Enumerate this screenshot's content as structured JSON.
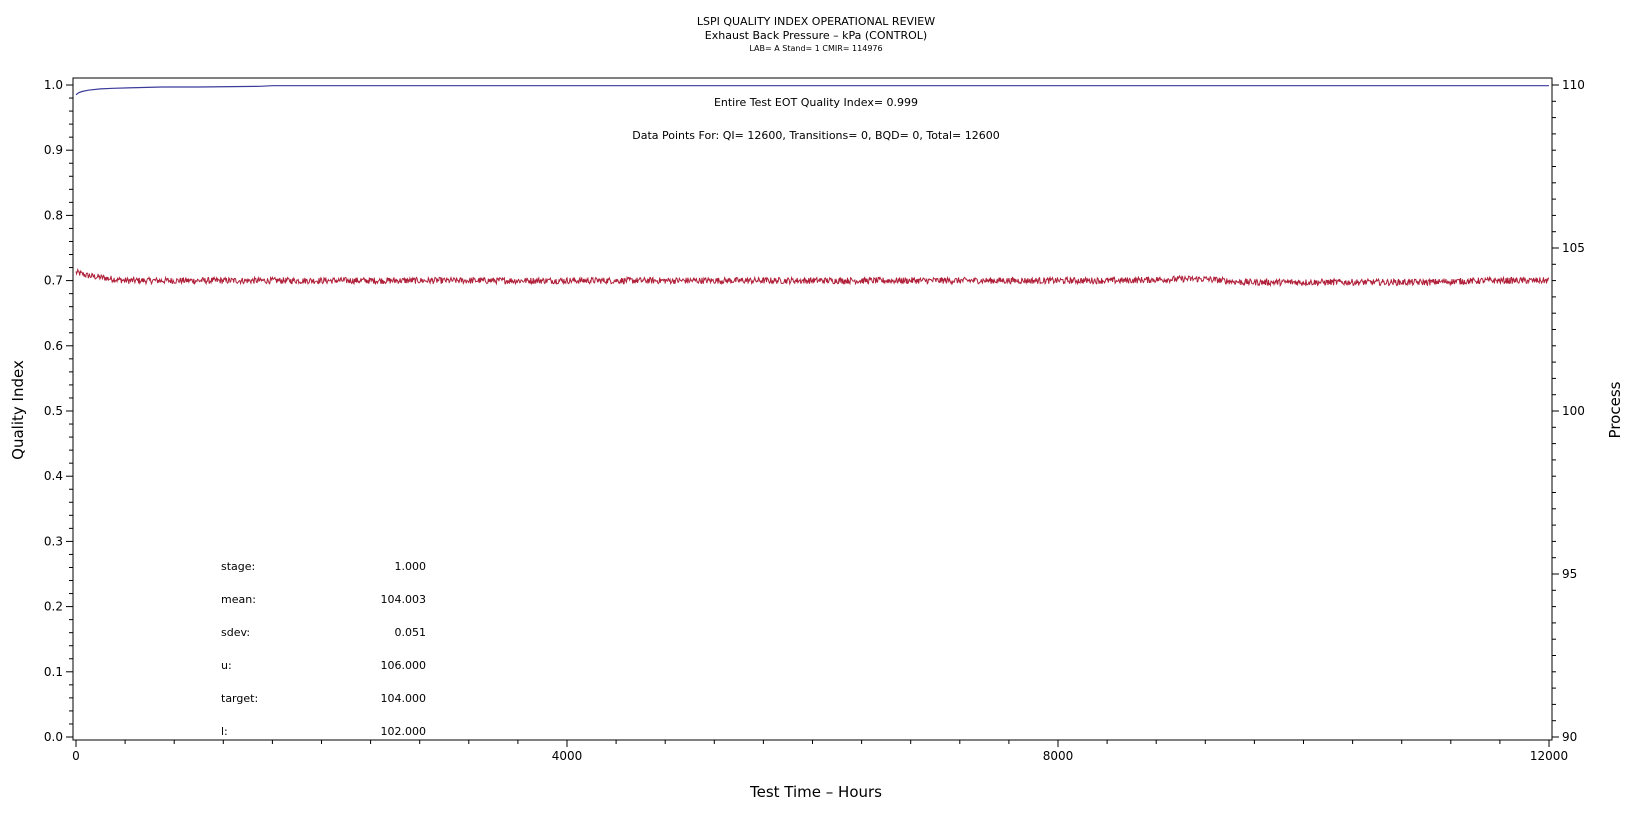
{
  "chart_data": {
    "type": "line",
    "title": "LSPI QUALITY INDEX OPERATIONAL REVIEW",
    "subtitle": "Exhaust Back Pressure – kPa (CONTROL)",
    "subsubtitle": "LAB= A Stand= 1 CMIR= 114976",
    "xlabel": "Test Time – Hours",
    "ylabel_left": "Quality Index",
    "ylabel_right": "Process",
    "xlim": [
      0,
      12000
    ],
    "ylim_left": [
      0.0,
      1.0
    ],
    "ylim_right": [
      90,
      110
    ],
    "x_ticks": [
      "0",
      "4000",
      "8000",
      "12000"
    ],
    "y_left_ticks": [
      "0.0",
      "0.1",
      "0.2",
      "0.3",
      "0.4",
      "0.5",
      "0.6",
      "0.7",
      "0.8",
      "0.9",
      "1.0"
    ],
    "y_right_ticks": [
      "90",
      "95",
      "100",
      "105",
      "110"
    ],
    "annotations": [
      "Entire Test EOT Quality Index=   0.999",
      "Data Points For: QI= 12600, Transitions=     0, BQD=     0, Total= 12600"
    ],
    "stats": [
      {
        "label": "stage:",
        "value": "1.000"
      },
      {
        "label": "mean:",
        "value": "104.003"
      },
      {
        "label": "sdev:",
        "value": "0.051"
      },
      {
        "label": "u:",
        "value": "106.000"
      },
      {
        "label": "target:",
        "value": "104.000"
      },
      {
        "label": "l:",
        "value": "102.000"
      }
    ],
    "series": [
      {
        "axis": "left",
        "color": "#3b3b9a",
        "x": [
          0,
          20,
          50,
          100,
          200,
          300,
          500,
          700,
          1000,
          1500,
          1600,
          3000,
          6000,
          9000,
          12000
        ],
        "y": [
          0.985,
          0.988,
          0.99,
          0.992,
          0.994,
          0.995,
          0.996,
          0.997,
          0.997,
          0.998,
          0.999,
          0.999,
          0.999,
          0.999,
          0.999
        ]
      },
      {
        "axis": "right",
        "color": "#b0203a",
        "x": [
          0,
          100,
          200,
          300,
          400,
          1000,
          2000,
          3000,
          4000,
          5000,
          6000,
          7000,
          8000,
          8500,
          9000,
          9200,
          9500,
          10000,
          11000,
          11500,
          12000
        ],
        "y": [
          104.25,
          104.15,
          104.1,
          104.05,
          104.0,
          104.0,
          104.0,
          104.0,
          104.0,
          104.0,
          104.0,
          104.0,
          104.0,
          104.0,
          104.05,
          104.05,
          103.95,
          103.95,
          103.95,
          104.0,
          104.0
        ],
        "noise": 0.1
      }
    ],
    "grid": false
  }
}
